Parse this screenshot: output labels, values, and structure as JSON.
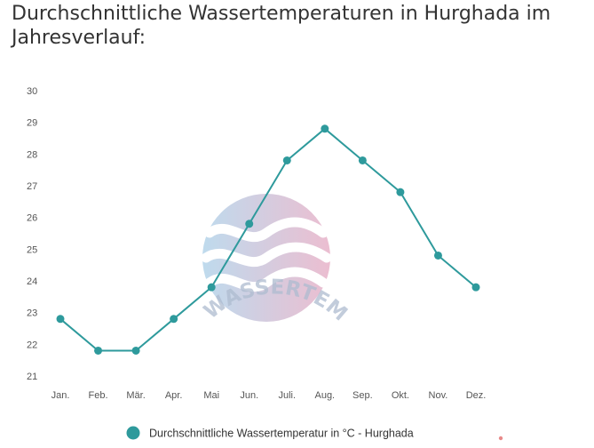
{
  "title": "Durchschnittliche Wassertemperaturen in Hurghada im Jahresverlauf:",
  "watermark": {
    "text": "WASSERTEMPERATUR.ORG",
    "colors": {
      "left": "#b3d4ea",
      "right": "#e8b2c8",
      "waves": "#ffffff",
      "text": "#aebcd0"
    }
  },
  "chart_data": {
    "type": "line",
    "categories": [
      "Jan.",
      "Feb.",
      "Mär.",
      "Apr.",
      "Mai",
      "Jun.",
      "Juli.",
      "Aug.",
      "Sep.",
      "Okt.",
      "Nov.",
      "Dez."
    ],
    "series": [
      {
        "name": "Durchschnittliche Wassertemperatur in °C - Hurghada",
        "values": [
          22.8,
          21.8,
          21.8,
          22.8,
          23.8,
          25.8,
          27.8,
          28.8,
          27.8,
          26.8,
          24.8,
          23.8
        ],
        "color": "#2e9a9c"
      }
    ],
    "y_ticks": [
      21,
      22,
      23,
      24,
      25,
      26,
      27,
      28,
      29,
      30
    ],
    "ylim": [
      21,
      30
    ],
    "grid": false,
    "legend": "bottom-center"
  }
}
